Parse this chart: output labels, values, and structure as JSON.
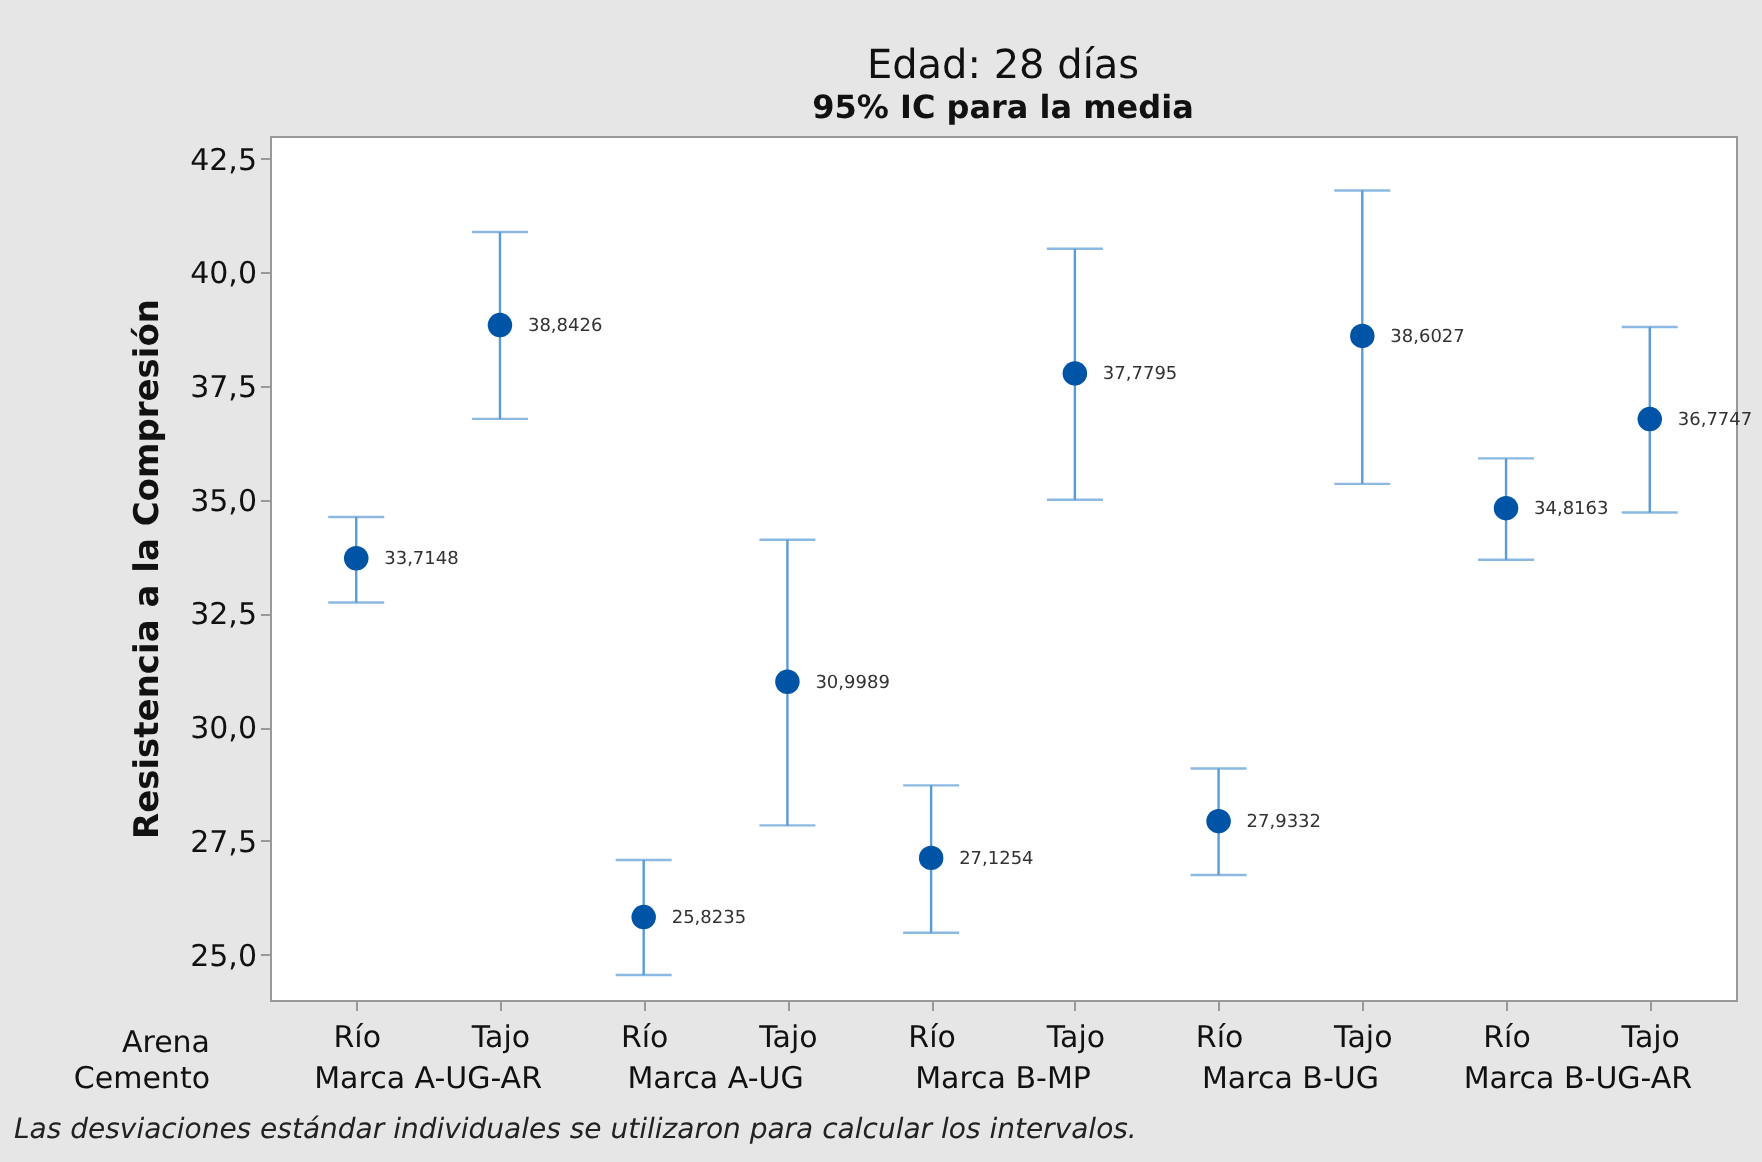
{
  "chart_data": {
    "type": "scatter",
    "title": "Edad: 28 días",
    "subtitle": "95% IC para la media",
    "ylabel": "Resistencia a la Compresión",
    "xlabel": "Arena",
    "categories": [
      "Río",
      "Tajo",
      "Río",
      "Tajo",
      "Río",
      "Tajo",
      "Río",
      "Tajo",
      "Río",
      "Tajo"
    ],
    "series": [
      {
        "color": "#0054a6",
        "values": [
          33.7148,
          38.8426,
          25.8235,
          30.9989,
          27.1254,
          37.7795,
          27.9332,
          38.6027,
          34.8163,
          36.7747
        ],
        "errors": [
          [
            32.74,
            34.62
          ],
          [
            36.78,
            40.89
          ],
          [
            24.55,
            27.08
          ],
          [
            27.84,
            34.12
          ],
          [
            25.48,
            28.72
          ],
          [
            35.0,
            40.52
          ],
          [
            26.75,
            29.09
          ],
          [
            35.35,
            41.8
          ],
          [
            33.68,
            35.91
          ],
          [
            34.72,
            38.8
          ]
        ],
        "value_labels": [
          "33,7148",
          "38,8426",
          "25,8235",
          "30,9989",
          "27,1254",
          "37,7795",
          "27,9332",
          "38,6027",
          "34,8163",
          "36,7747"
        ]
      }
    ],
    "ylim": [
      24,
      43
    ],
    "yticks": [
      {
        "value": 25,
        "label": "25,0"
      },
      {
        "value": 27.5,
        "label": "27,5"
      },
      {
        "value": 30,
        "label": "30,0"
      },
      {
        "value": 32.5,
        "label": "32,5"
      },
      {
        "value": 35,
        "label": "35,0"
      },
      {
        "value": 37.5,
        "label": "37,5"
      },
      {
        "value": 40,
        "label": "40,0"
      },
      {
        "value": 42.5,
        "label": "42,5"
      }
    ],
    "marker": "circle",
    "grid": false,
    "annotations": [
      "Cemento",
      "Marca A-UG-AR",
      "Marca A-UG",
      "Marca B-MP",
      "Marca B-UG",
      "Marca B-UG-AR",
      "Las desviaciones estándar individuales se utilizaron para calcular los intervalos."
    ]
  }
}
